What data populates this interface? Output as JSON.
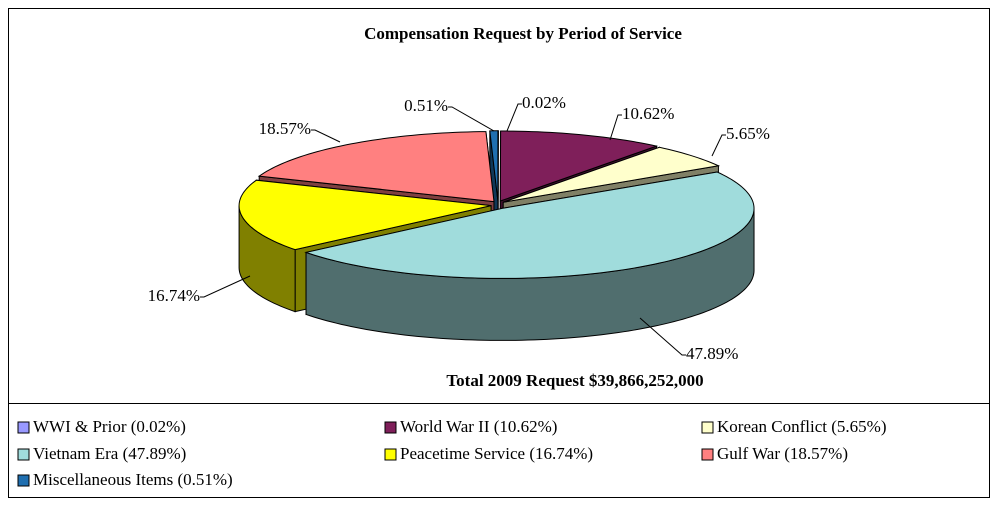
{
  "chart_data": {
    "type": "pie",
    "title": "Compensation Request by Period of Service",
    "annotation": "Total 2009 Request $39,866,252,000",
    "categories": [
      "WWI & Prior (0.02%)",
      "World War II (10.62%)",
      "Korean Conflict (5.65%)",
      "Vietnam Era (47.89%)",
      "Peacetime Service (16.74%)",
      "Gulf War (18.57%)",
      "Miscellaneous Items (0.51%)"
    ],
    "values": [
      0.02,
      10.62,
      5.65,
      47.89,
      16.74,
      18.57,
      0.51
    ],
    "value_labels": [
      "0.02%",
      "10.62%",
      "5.65%",
      "47.89%",
      "16.74%",
      "18.57%",
      "0.51%"
    ],
    "colors": [
      "#9999ff",
      "#7f1f5a",
      "#ffffcc",
      "#a0dcdc",
      "#ffff00",
      "#ff8080",
      "#1f6fb0"
    ],
    "legend": "bottom"
  }
}
